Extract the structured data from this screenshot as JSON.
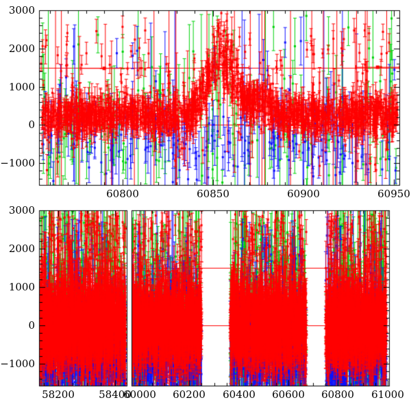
{
  "figure": {
    "kind": "two-panel scatter light curve with error bars",
    "background": "#ffffff",
    "axis_color": "#000000"
  },
  "chart_data": [
    {
      "type": "scatter",
      "id": "top-panel",
      "title": "",
      "xlabel": "",
      "ylabel": "",
      "y_range": [
        -1570,
        3000
      ],
      "y_major": [
        3000,
        2000,
        1000,
        0,
        -1000
      ],
      "y_labels": [
        "3000",
        "2000",
        "1000",
        "0",
        "−1000"
      ],
      "y_minor_step": 200,
      "segments": [
        {
          "x_range": [
            60754,
            60953
          ],
          "x_major": [
            60800,
            60850,
            60900,
            60950
          ],
          "x_labels": [
            "60800",
            "60850",
            "60900",
            "60950"
          ],
          "x_minor_step": 10
        }
      ],
      "ref_color": "#ff0000",
      "ref_lines": [
        {
          "y": 1500
        },
        {
          "y": 0
        }
      ],
      "series": [
        {
          "name": "series-green",
          "color": "#00d20a",
          "marker_px": 3,
          "clusters": [
            {
              "x0": 60755,
              "x1": 60952,
              "n": 150
            }
          ],
          "y_mean": -350,
          "y_sd": 750,
          "wide_frac": 0.0,
          "wide_sd": 0,
          "outlier_frac": 0.25,
          "outlier_range": [
            300,
            2900
          ],
          "err_base": 300,
          "err_spread": 450,
          "err_huge_frac": 0.1,
          "err_huge_range": [
            1800,
            4200
          ]
        },
        {
          "name": "series-blue",
          "color": "#0f0fff",
          "marker_px": 3,
          "clusters": [
            {
              "x0": 60755,
              "x1": 60952,
              "n": 210
            }
          ],
          "y_mean": -450,
          "y_sd": 480,
          "wide_frac": 0.08,
          "wide_sd": 800,
          "outlier_frac": 0.1,
          "outlier_range": [
            0,
            2200
          ],
          "err_base": 250,
          "err_spread": 350,
          "err_huge_frac": 0.07,
          "err_huge_range": [
            1800,
            4200
          ]
        },
        {
          "name": "series-red",
          "color": "#ff0000",
          "marker_px": 3,
          "clusters": [
            {
              "x0": 60755,
              "x1": 60952,
              "n": 1600
            }
          ],
          "y_mean": 240,
          "y_sd": 230,
          "wide_frac": 0.1,
          "wide_sd": 650,
          "outlier_frac": 0.05,
          "outlier_range": [
            400,
            2600
          ],
          "err_base": 110,
          "err_spread": 160,
          "err_huge_frac": 0.015,
          "err_huge_range": [
            1500,
            3800
          ],
          "bumps": [
            {
              "c": 60855,
              "s": 7,
              "a": 1650
            },
            {
              "c": 60876,
              "s": 5,
              "a": 420
            }
          ]
        }
      ],
      "binned_points": {
        "color": "#ff0000",
        "marker_px": 5,
        "points": [
          {
            "x": 60790,
            "y": 1480,
            "xerr": 13
          },
          {
            "x": 60860,
            "y": 1500,
            "xerr": 10
          },
          {
            "x": 60941,
            "y": 1510,
            "xerr": 12
          }
        ]
      }
    },
    {
      "type": "scatter",
      "id": "bottom-panel",
      "title": "",
      "xlabel": "",
      "ylabel": "",
      "broken_x_axis": true,
      "y_range": [
        -1570,
        3000
      ],
      "y_major": [
        3000,
        2000,
        1000,
        0,
        -1000
      ],
      "y_labels": [
        "3000",
        "2000",
        "1000",
        "0",
        "−1000"
      ],
      "y_minor_step": 200,
      "segments": [
        {
          "x_range": [
            58132,
            58441
          ],
          "x_major": [
            58200,
            58400
          ],
          "x_labels": [
            "58200",
            "58400"
          ],
          "x_minor_step": 50
        },
        {
          "x_range": [
            59967,
            61006
          ],
          "x_major": [
            60000,
            60200,
            60400,
            60600,
            60800,
            61000
          ],
          "x_labels": [
            "60000",
            "60200",
            "60400",
            "60600",
            "60800",
            "61000"
          ],
          "x_minor_step": 50
        }
      ],
      "ref_color": "#ff0000",
      "ref_lines": [
        {
          "y": 1500
        },
        {
          "y": 0
        }
      ],
      "series": [
        {
          "name": "series-green",
          "color": "#00d20a",
          "marker_px": 3,
          "clusters": [
            {
              "x0": 58135,
              "x1": 58438,
              "n": 420
            },
            {
              "x0": 59970,
              "x1": 60250,
              "n": 300
            },
            {
              "x0": 60365,
              "x1": 60672,
              "n": 330
            },
            {
              "x0": 60750,
              "x1": 60995,
              "n": 280
            }
          ],
          "y_mean": -400,
          "y_sd": 900,
          "wide_frac": 0.2,
          "wide_sd": 1200,
          "outlier_frac": 0.18,
          "outlier_range": [
            500,
            2900
          ],
          "err_base": 320,
          "err_spread": 480,
          "err_huge_frac": 0.08,
          "err_huge_range": [
            1800,
            4000
          ]
        },
        {
          "name": "series-blue",
          "color": "#0f0fff",
          "marker_px": 3,
          "clusters": [
            {
              "x0": 58135,
              "x1": 58438,
              "n": 560
            },
            {
              "x0": 59970,
              "x1": 60250,
              "n": 450
            },
            {
              "x0": 60365,
              "x1": 60672,
              "n": 480
            },
            {
              "x0": 60750,
              "x1": 60995,
              "n": 420
            }
          ],
          "y_mean": -600,
          "y_sd": 430,
          "wide_frac": 0.1,
          "wide_sd": 800,
          "outlier_frac": 0.06,
          "outlier_range": [
            -100,
            2400
          ],
          "err_base": 280,
          "err_spread": 380,
          "err_huge_frac": 0.05,
          "err_huge_range": [
            1500,
            3500
          ]
        },
        {
          "name": "series-red",
          "color": "#ff0000",
          "marker_px": 3,
          "clusters": [
            {
              "x0": 58135,
              "x1": 58438,
              "n": 2100
            },
            {
              "x0": 59970,
              "x1": 60250,
              "n": 1500
            },
            {
              "x0": 60365,
              "x1": 60672,
              "n": 1650
            },
            {
              "x0": 60750,
              "x1": 60995,
              "n": 1400
            }
          ],
          "y_mean": 0,
          "y_sd": 430,
          "wide_frac": 0.15,
          "wide_sd": 850,
          "outlier_frac": 0.09,
          "outlier_range": [
            400,
            2900
          ],
          "err_base": 180,
          "err_spread": 260,
          "err_huge_frac": 0.01,
          "err_huge_range": [
            1200,
            3000
          ]
        }
      ]
    }
  ]
}
